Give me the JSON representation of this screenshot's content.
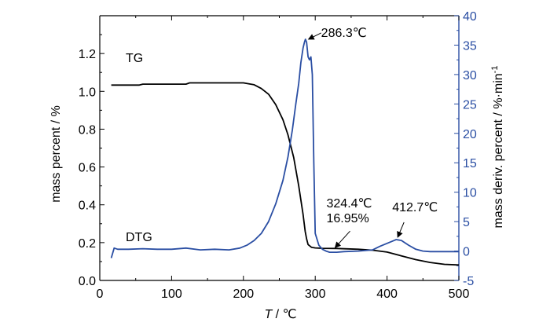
{
  "colors": {
    "tg": "#000000",
    "dtg": "#2a4ea3",
    "right_axis": "#2a4ea3",
    "axes": "#000000"
  },
  "chart_data": {
    "type": "line",
    "title": "",
    "xlabel": {
      "symbol": "T",
      "unit": " / ℃"
    },
    "ylabel_left": "mass percent / %",
    "ylabel_right": {
      "text": "mass deriv. percent / %·min",
      "sup": "-1"
    },
    "xlim": [
      0,
      500
    ],
    "ylim_left": [
      0.0,
      1.4
    ],
    "ylim_right": [
      -5,
      40
    ],
    "xticks": [
      0,
      100,
      200,
      300,
      400,
      500
    ],
    "yticks_left": [
      "0.0",
      "0.2",
      "0.4",
      "0.6",
      "0.8",
      "1.0",
      "1.2"
    ],
    "yticks_right": [
      "-5",
      "0",
      "5",
      "10",
      "15",
      "20",
      "25",
      "30",
      "35",
      "40"
    ],
    "grid": false,
    "series": [
      {
        "name": "TG",
        "axis": "left",
        "x": [
          16,
          55,
          60,
          120,
          125,
          200,
          215,
          225,
          235,
          245,
          255,
          262,
          270,
          277,
          283,
          286,
          288,
          290,
          295,
          300,
          310,
          330,
          360,
          380,
          400,
          420,
          440,
          460,
          480,
          500
        ],
        "y": [
          1.033,
          1.033,
          1.038,
          1.038,
          1.045,
          1.045,
          1.035,
          1.015,
          0.985,
          0.93,
          0.85,
          0.77,
          0.65,
          0.5,
          0.35,
          0.26,
          0.22,
          0.19,
          0.175,
          0.172,
          0.17,
          0.169,
          0.165,
          0.16,
          0.15,
          0.13,
          0.11,
          0.095,
          0.085,
          0.082
        ]
      },
      {
        "name": "DTG",
        "axis": "right",
        "x": [
          16,
          20,
          25,
          40,
          60,
          80,
          100,
          120,
          140,
          160,
          180,
          195,
          205,
          215,
          225,
          235,
          245,
          255,
          262,
          268,
          273,
          277,
          280,
          283,
          285,
          286.3,
          288,
          290,
          292,
          294,
          296,
          298,
          300,
          305,
          310,
          315,
          320,
          330,
          340,
          360,
          380,
          390,
          400,
          410,
          412.7,
          420,
          430,
          440,
          450,
          460,
          480,
          500
        ],
        "y": [
          -1.2,
          0.5,
          0.3,
          0.3,
          0.4,
          0.3,
          0.3,
          0.5,
          0.2,
          0.3,
          0.2,
          0.5,
          1.0,
          1.8,
          3.0,
          5.0,
          8.0,
          12.0,
          16.0,
          20.5,
          25.0,
          28.5,
          32.0,
          34.5,
          35.5,
          36.0,
          35.5,
          33.0,
          32.5,
          33.0,
          30.0,
          15.0,
          3.0,
          1.0,
          0.3,
          0.0,
          -0.2,
          -0.2,
          -0.1,
          0.0,
          0.2,
          0.8,
          1.3,
          1.8,
          1.95,
          1.8,
          1.0,
          0.3,
          0.0,
          -0.1,
          -0.1,
          -0.1
        ]
      }
    ],
    "annotations": [
      {
        "id": "peak",
        "text": "286.3℃",
        "x": 286.3,
        "y_right": 36.0
      },
      {
        "id": "point324",
        "text": "324.4℃",
        "text2": "16.95%",
        "x": 324.4,
        "y_left": 0.1695
      },
      {
        "id": "point412",
        "text": "412.7℃",
        "x": 412.7,
        "y_right": 1.95
      }
    ],
    "series_labels": [
      {
        "text": "TG"
      },
      {
        "text": "DTG"
      }
    ]
  }
}
